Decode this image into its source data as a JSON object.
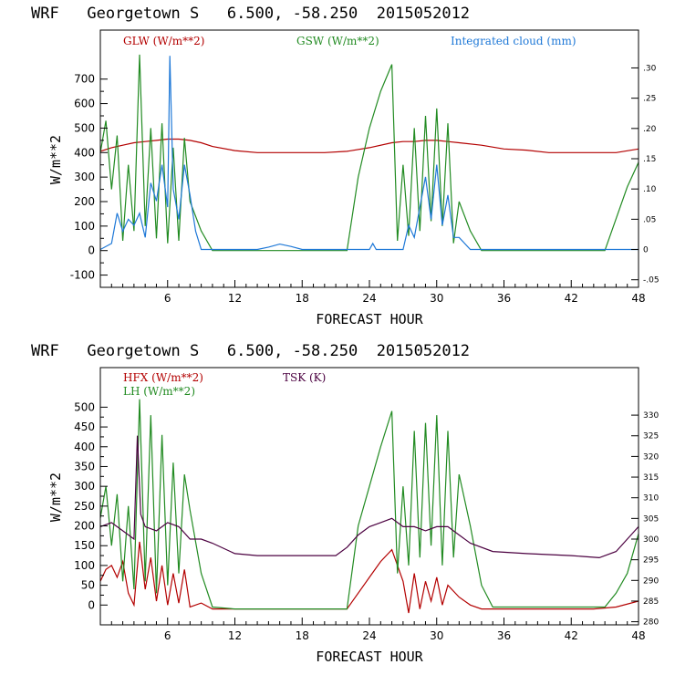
{
  "chart_data": [
    {
      "type": "line",
      "title": "WRF   Georgetown S   6.500, -58.250  2015052012",
      "xlabel": "FORECAST HOUR",
      "ylabel": "W/m**2",
      "xlim": [
        0,
        48
      ],
      "ylim": [
        -150,
        900
      ],
      "x_ticks": [
        6,
        12,
        18,
        24,
        30,
        36,
        42,
        48
      ],
      "y_ticks": [
        -100,
        0,
        100,
        200,
        300,
        400,
        500,
        600,
        700
      ],
      "y2lim": [
        -0.0625,
        0.3625
      ],
      "y2_ticks": [
        -0.05,
        0,
        0.05,
        0.1,
        0.15,
        0.2,
        0.25,
        0.3
      ],
      "y2_tick_labels": [
        "-.05",
        "0",
        ".05",
        ".10",
        ".15",
        ".20",
        ".25",
        ".30"
      ],
      "series": [
        {
          "name": "GLW (W/m**2)",
          "color": "#b30000",
          "axis": "left",
          "x": [
            0,
            1,
            2,
            3,
            4,
            5,
            6,
            7,
            8,
            9,
            10,
            12,
            14,
            16,
            18,
            20,
            22,
            24,
            26,
            27,
            28,
            29,
            30,
            31,
            32,
            34,
            36,
            38,
            40,
            42,
            44,
            46,
            48
          ],
          "y": [
            405,
            420,
            430,
            440,
            445,
            450,
            455,
            455,
            450,
            440,
            425,
            408,
            400,
            400,
            400,
            400,
            405,
            420,
            440,
            445,
            445,
            450,
            450,
            445,
            440,
            430,
            415,
            410,
            400,
            400,
            400,
            400,
            415
          ]
        },
        {
          "name": "GSW (W/m**2)",
          "color": "#228b22",
          "axis": "left",
          "x": [
            0,
            0.5,
            1,
            1.5,
            2,
            2.5,
            3,
            3.5,
            4,
            4.5,
            5,
            5.5,
            6,
            6.5,
            7,
            7.5,
            8,
            9,
            10,
            11,
            22,
            23,
            24,
            25,
            26,
            26.5,
            27,
            27.5,
            28,
            28.5,
            29,
            29.5,
            30,
            30.5,
            31,
            31.5,
            32,
            33,
            34,
            35,
            45,
            46,
            47,
            48
          ],
          "y": [
            400,
            530,
            250,
            470,
            40,
            350,
            80,
            800,
            100,
            500,
            50,
            520,
            30,
            420,
            40,
            460,
            200,
            80,
            0,
            0,
            0,
            300,
            500,
            650,
            760,
            40,
            350,
            60,
            500,
            80,
            550,
            120,
            580,
            100,
            520,
            30,
            200,
            80,
            0,
            0,
            0,
            130,
            260,
            360
          ]
        },
        {
          "name": "Integrated cloud (mm)",
          "color": "#1e78d7",
          "axis": "right",
          "x": [
            0,
            1,
            1.5,
            2,
            2.5,
            3,
            3.5,
            4,
            4.5,
            5,
            5.5,
            6,
            6.2,
            6.5,
            7,
            7.5,
            8,
            8.5,
            9,
            10,
            14,
            15,
            16,
            17,
            18,
            24,
            24.3,
            24.6,
            27,
            27.5,
            28,
            28.5,
            29,
            29.5,
            30,
            30.5,
            31,
            31.5,
            32,
            33,
            34,
            48
          ],
          "y": [
            0,
            0.01,
            0.06,
            0.03,
            0.05,
            0.04,
            0.06,
            0.02,
            0.11,
            0.08,
            0.14,
            0.07,
            0.32,
            0.1,
            0.05,
            0.14,
            0.09,
            0.03,
            0.0,
            0.0,
            0.0,
            0.004,
            0.009,
            0.005,
            0.0,
            0.0,
            0.01,
            0.0,
            0.0,
            0.04,
            0.02,
            0.07,
            0.12,
            0.05,
            0.14,
            0.04,
            0.09,
            0.02,
            0.02,
            0.0,
            0.0,
            0.0
          ]
        }
      ],
      "legend": "top"
    },
    {
      "type": "line",
      "title": "WRF   Georgetown S   6.500, -58.250  2015052012",
      "xlabel": "FORECAST HOUR",
      "ylabel": "W/m**2",
      "xlim": [
        0,
        48
      ],
      "ylim": [
        -50,
        600
      ],
      "x_ticks": [
        6,
        12,
        18,
        24,
        30,
        36,
        42,
        48
      ],
      "y_ticks": [
        0,
        50,
        100,
        150,
        200,
        250,
        300,
        350,
        400,
        450,
        500
      ],
      "y2lim": [
        279.25,
        341.5
      ],
      "y2_ticks": [
        280,
        285,
        290,
        295,
        300,
        305,
        310,
        315,
        320,
        325,
        330
      ],
      "series": [
        {
          "name": "HFX (W/m**2)",
          "color": "#b30000",
          "axis": "left",
          "x": [
            0,
            0.5,
            1,
            1.5,
            2,
            2.5,
            3,
            3.5,
            4,
            4.5,
            5,
            5.5,
            6,
            6.5,
            7,
            7.5,
            8,
            9,
            10,
            12,
            14,
            18,
            22,
            24,
            25,
            26,
            27,
            27.5,
            28,
            28.5,
            29,
            29.5,
            30,
            30.5,
            31,
            32,
            33,
            34,
            36,
            40,
            44,
            46,
            48
          ],
          "y": [
            60,
            90,
            100,
            70,
            110,
            30,
            0,
            160,
            40,
            120,
            10,
            100,
            0,
            80,
            5,
            90,
            -5,
            5,
            -10,
            -10,
            -10,
            -10,
            -10,
            70,
            110,
            140,
            60,
            -20,
            80,
            -10,
            60,
            10,
            70,
            0,
            50,
            20,
            0,
            -10,
            -10,
            -10,
            -10,
            -5,
            10
          ]
        },
        {
          "name": "LH (W/m**2)",
          "color": "#228b22",
          "axis": "left",
          "x": [
            0,
            0.5,
            1,
            1.5,
            2,
            2.5,
            3,
            3.5,
            4,
            4.5,
            5,
            5.5,
            6,
            6.5,
            7,
            7.5,
            8,
            9,
            10,
            12,
            22,
            23,
            24,
            25,
            26,
            26.5,
            27,
            27.5,
            28,
            28.5,
            29,
            29.5,
            30,
            30.5,
            31,
            31.5,
            32,
            33,
            34,
            35,
            45,
            46,
            47,
            48
          ],
          "y": [
            220,
            300,
            150,
            280,
            60,
            250,
            40,
            520,
            60,
            480,
            30,
            430,
            50,
            360,
            80,
            330,
            240,
            80,
            -5,
            -10,
            -10,
            200,
            300,
            400,
            490,
            80,
            300,
            100,
            440,
            120,
            460,
            150,
            480,
            100,
            440,
            120,
            330,
            200,
            50,
            -5,
            -5,
            30,
            80,
            180
          ]
        },
        {
          "name": "TSK (K)",
          "color": "#4b0040",
          "axis": "right",
          "x": [
            0,
            1,
            2,
            3,
            3.3,
            3.6,
            4,
            5,
            6,
            7,
            8,
            9,
            10,
            12,
            14,
            18,
            21,
            22,
            23,
            24,
            25,
            26,
            27,
            28,
            29,
            30,
            31,
            32,
            33,
            35,
            38,
            42,
            44.5,
            46,
            48
          ],
          "y": [
            303,
            304,
            302,
            300,
            325,
            306,
            303,
            302,
            304,
            303,
            300,
            300,
            299,
            296.5,
            296,
            296,
            296,
            298,
            301,
            303,
            304,
            305,
            303,
            303,
            302,
            303,
            303,
            301,
            299,
            297,
            296.5,
            296,
            295.5,
            297,
            303
          ]
        }
      ],
      "legend": "top"
    }
  ]
}
